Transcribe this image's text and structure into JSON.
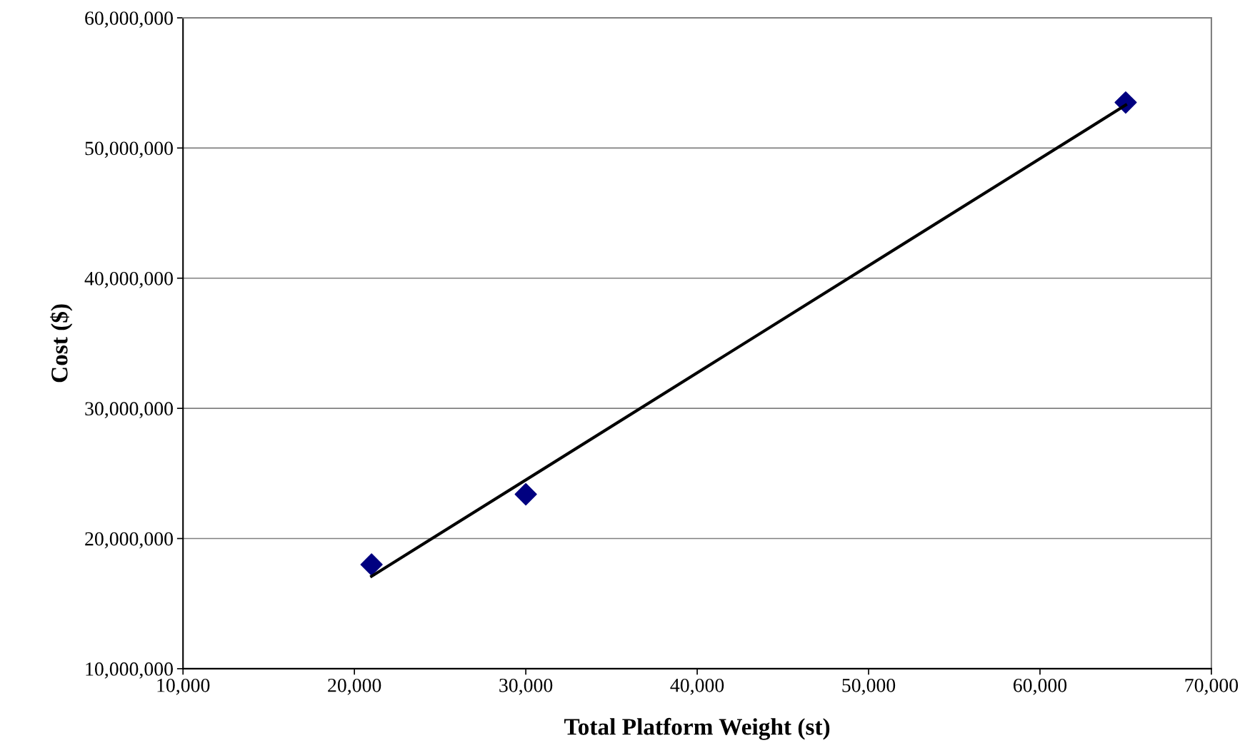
{
  "chart_data": {
    "type": "scatter",
    "xlabel": "Total Platform Weight (st)",
    "ylabel": "Cost ($)",
    "series": [
      {
        "color": "#000080",
        "marker": "diamond",
        "x": [
          21000,
          30000,
          65000
        ],
        "values": [
          18000000,
          23400000,
          53500000
        ]
      },
      {
        "type": "line",
        "color": "#000000",
        "line_style": "solid",
        "marker": "none",
        "x": [
          21000,
          65000
        ],
        "values": [
          17100000,
          53300000
        ]
      }
    ],
    "xlim": [
      10000,
      70000
    ],
    "ylim": [
      10000000,
      60000000
    ],
    "xticks": [
      {
        "value": 10000,
        "label": "10,000"
      },
      {
        "value": 20000,
        "label": "20,000"
      },
      {
        "value": 30000,
        "label": "30,000"
      },
      {
        "value": 40000,
        "label": "40,000"
      },
      {
        "value": 50000,
        "label": "50,000"
      },
      {
        "value": 60000,
        "label": "60,000"
      },
      {
        "value": 70000,
        "label": "70,000"
      }
    ],
    "yticks": [
      {
        "value": 10000000,
        "label": "10,000,000"
      },
      {
        "value": 20000000,
        "label": "20,000,000"
      },
      {
        "value": 30000000,
        "label": "30,000,000"
      },
      {
        "value": 40000000,
        "label": "40,000,000"
      },
      {
        "value": 50000000,
        "label": "50,000,000"
      },
      {
        "value": 60000000,
        "label": "60,000,000"
      }
    ],
    "grid": "y",
    "legend": false
  }
}
